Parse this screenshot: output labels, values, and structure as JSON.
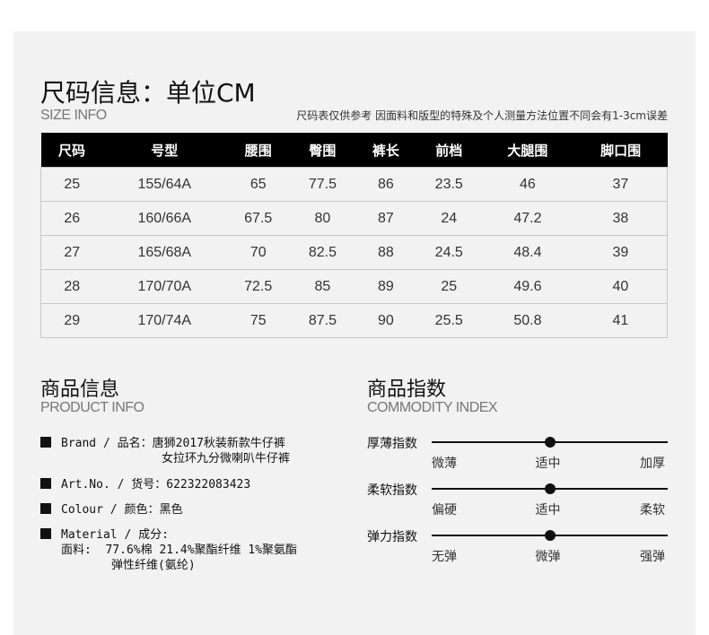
{
  "size_info": {
    "title": "尺码信息：单位CM",
    "subtitle": "SIZE INFO",
    "note": "尺码表仅供参考 因面料和版型的特殊及个人测量方法位置不同会有1-3cm误差",
    "headers": [
      "尺码",
      "号型",
      "腰围",
      "臀围",
      "裤长",
      "前档",
      "大腿围",
      "脚口围"
    ],
    "rows": [
      [
        "25",
        "155/64A",
        "65",
        "77.5",
        "86",
        "23.5",
        "46",
        "37"
      ],
      [
        "26",
        "160/66A",
        "67.5",
        "80",
        "87",
        "24",
        "47.2",
        "38"
      ],
      [
        "27",
        "165/68A",
        "70",
        "82.5",
        "88",
        "24.5",
        "48.4",
        "39"
      ],
      [
        "28",
        "170/70A",
        "72.5",
        "85",
        "89",
        "25",
        "49.6",
        "40"
      ],
      [
        "29",
        "170/74A",
        "75",
        "87.5",
        "90",
        "25.5",
        "50.8",
        "41"
      ]
    ]
  },
  "product_info": {
    "title": "商品信息",
    "subtitle": "PRODUCT INFO",
    "brand_line1": "Brand / 品名：唐狮2017秋装新款牛仔裤",
    "brand_line2": "女拉环九分微喇叭牛仔裤",
    "art_no": "Art.No. / 货号：622322083423",
    "colour": "Colour / 颜色：黑色",
    "material_line1": "Material / 成分:",
    "material_line2": "面料:  77.6%棉 21.4%聚酯纤维 1%聚氨酯",
    "material_line3": "弹性纤维(氨纶)"
  },
  "commodity_index": {
    "title": "商品指数",
    "subtitle": "COMMODITY INDEX",
    "items": [
      {
        "label": "厚薄指数",
        "left": "微薄",
        "mid": "适中",
        "right": "加厚",
        "level": 0.5
      },
      {
        "label": "柔软指数",
        "left": "偏硬",
        "mid": "适中",
        "right": "柔软",
        "level": 0.5
      },
      {
        "label": "弹力指数",
        "left": "无弹",
        "mid": "微弹",
        "right": "强弹",
        "level": 0.5
      }
    ]
  }
}
